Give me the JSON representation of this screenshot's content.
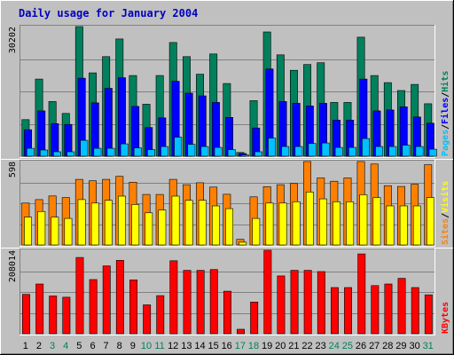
{
  "title": "Daily usage for January 2004",
  "colors": {
    "background": "#c0c0c0",
    "plot_bg": "#c0c0c0",
    "grid": "#808080",
    "hits": "#00805c",
    "files": "#0000ff",
    "pages": "#00c0ff",
    "visits": "#ffff00",
    "sites": "#ff8000",
    "kbytes": "#ff0000",
    "title": "#0000c0",
    "weekday": "#000000",
    "weekend": "#00805c",
    "sep_light": "#ffffff",
    "sep_dark": "#808080"
  },
  "chart_data": [
    {
      "type": "bar",
      "panel": "hits-files-pages",
      "max_label": "30202",
      "side_label": [
        "Pages",
        "/",
        "Files",
        "/",
        "Hits"
      ],
      "categories": [
        "1",
        "2",
        "3",
        "4",
        "5",
        "6",
        "7",
        "8",
        "9",
        "10",
        "11",
        "12",
        "13",
        "14",
        "15",
        "16",
        "17",
        "18",
        "19",
        "20",
        "21",
        "22",
        "23",
        "24",
        "25",
        "26",
        "27",
        "28",
        "29",
        "30",
        "31"
      ],
      "series": [
        {
          "name": "Hits",
          "values": [
            8300,
            17500,
            12400,
            9700,
            29400,
            18900,
            22600,
            26600,
            18300,
            11800,
            18300,
            25800,
            22600,
            18600,
            23200,
            16500,
            850,
            12600,
            28200,
            23000,
            19500,
            20800,
            21200,
            12200,
            12200,
            27000,
            18300,
            16700,
            14900,
            16300,
            11900
          ]
        },
        {
          "name": "Files",
          "values": [
            6000,
            10300,
            7400,
            7200,
            17700,
            12100,
            15400,
            17800,
            11300,
            6500,
            8700,
            17000,
            14300,
            13700,
            12200,
            8800,
            600,
            6400,
            19800,
            12400,
            12000,
            11400,
            12000,
            8200,
            8200,
            17500,
            10300,
            10500,
            11200,
            8900,
            7500
          ]
        },
        {
          "name": "Pages",
          "values": [
            1800,
            1400,
            1000,
            1000,
            3600,
            1800,
            1800,
            2800,
            1900,
            1500,
            2200,
            4300,
            2700,
            2200,
            2000,
            1500,
            300,
            1000,
            4100,
            2200,
            2200,
            2900,
            3000,
            2000,
            2000,
            4000,
            2200,
            2200,
            2500,
            2200,
            1600
          ]
        }
      ]
    },
    {
      "type": "bar",
      "panel": "visits-sites",
      "max_label": "598",
      "side_label": [
        "Sites",
        "/",
        "Visits"
      ],
      "categories": [
        "1",
        "2",
        "3",
        "4",
        "5",
        "6",
        "7",
        "8",
        "9",
        "10",
        "11",
        "12",
        "13",
        "14",
        "15",
        "16",
        "17",
        "18",
        "19",
        "20",
        "21",
        "22",
        "23",
        "24",
        "25",
        "26",
        "27",
        "28",
        "29",
        "30",
        "31"
      ],
      "series": [
        {
          "name": "Sites",
          "values": [
            300,
            325,
            351,
            340,
            470,
            460,
            470,
            492,
            450,
            362,
            362,
            470,
            432,
            446,
            415,
            363,
            40,
            345,
            418,
            432,
            440,
            598,
            480,
            457,
            480,
            598,
            580,
            425,
            419,
            435,
            575
          ]
        },
        {
          "name": "Visits",
          "values": [
            200,
            240,
            200,
            190,
            325,
            300,
            320,
            350,
            290,
            230,
            250,
            350,
            320,
            320,
            280,
            260,
            20,
            190,
            300,
            300,
            310,
            380,
            330,
            310,
            310,
            360,
            340,
            280,
            280,
            280,
            340
          ]
        }
      ]
    },
    {
      "type": "bar",
      "panel": "kbytes",
      "max_label": "208014",
      "side_label": [
        "KBytes"
      ],
      "categories": [
        "1",
        "2",
        "3",
        "4",
        "5",
        "6",
        "7",
        "8",
        "9",
        "10",
        "11",
        "12",
        "13",
        "14",
        "15",
        "16",
        "17",
        "18",
        "19",
        "20",
        "21",
        "22",
        "23",
        "24",
        "25",
        "26",
        "27",
        "28",
        "29",
        "30",
        "31"
      ],
      "series": [
        {
          "name": "KBytes",
          "values": [
            98000,
            124000,
            94000,
            91000,
            190000,
            135000,
            169000,
            183000,
            134000,
            72000,
            95000,
            182000,
            158000,
            158000,
            160000,
            106000,
            11000,
            79000,
            208000,
            144000,
            158000,
            158000,
            155000,
            115000,
            115000,
            199000,
            120000,
            124000,
            138000,
            115000,
            97000
          ]
        }
      ]
    }
  ],
  "weekend_days": [
    3,
    4,
    10,
    11,
    17,
    18,
    24,
    25,
    31
  ]
}
